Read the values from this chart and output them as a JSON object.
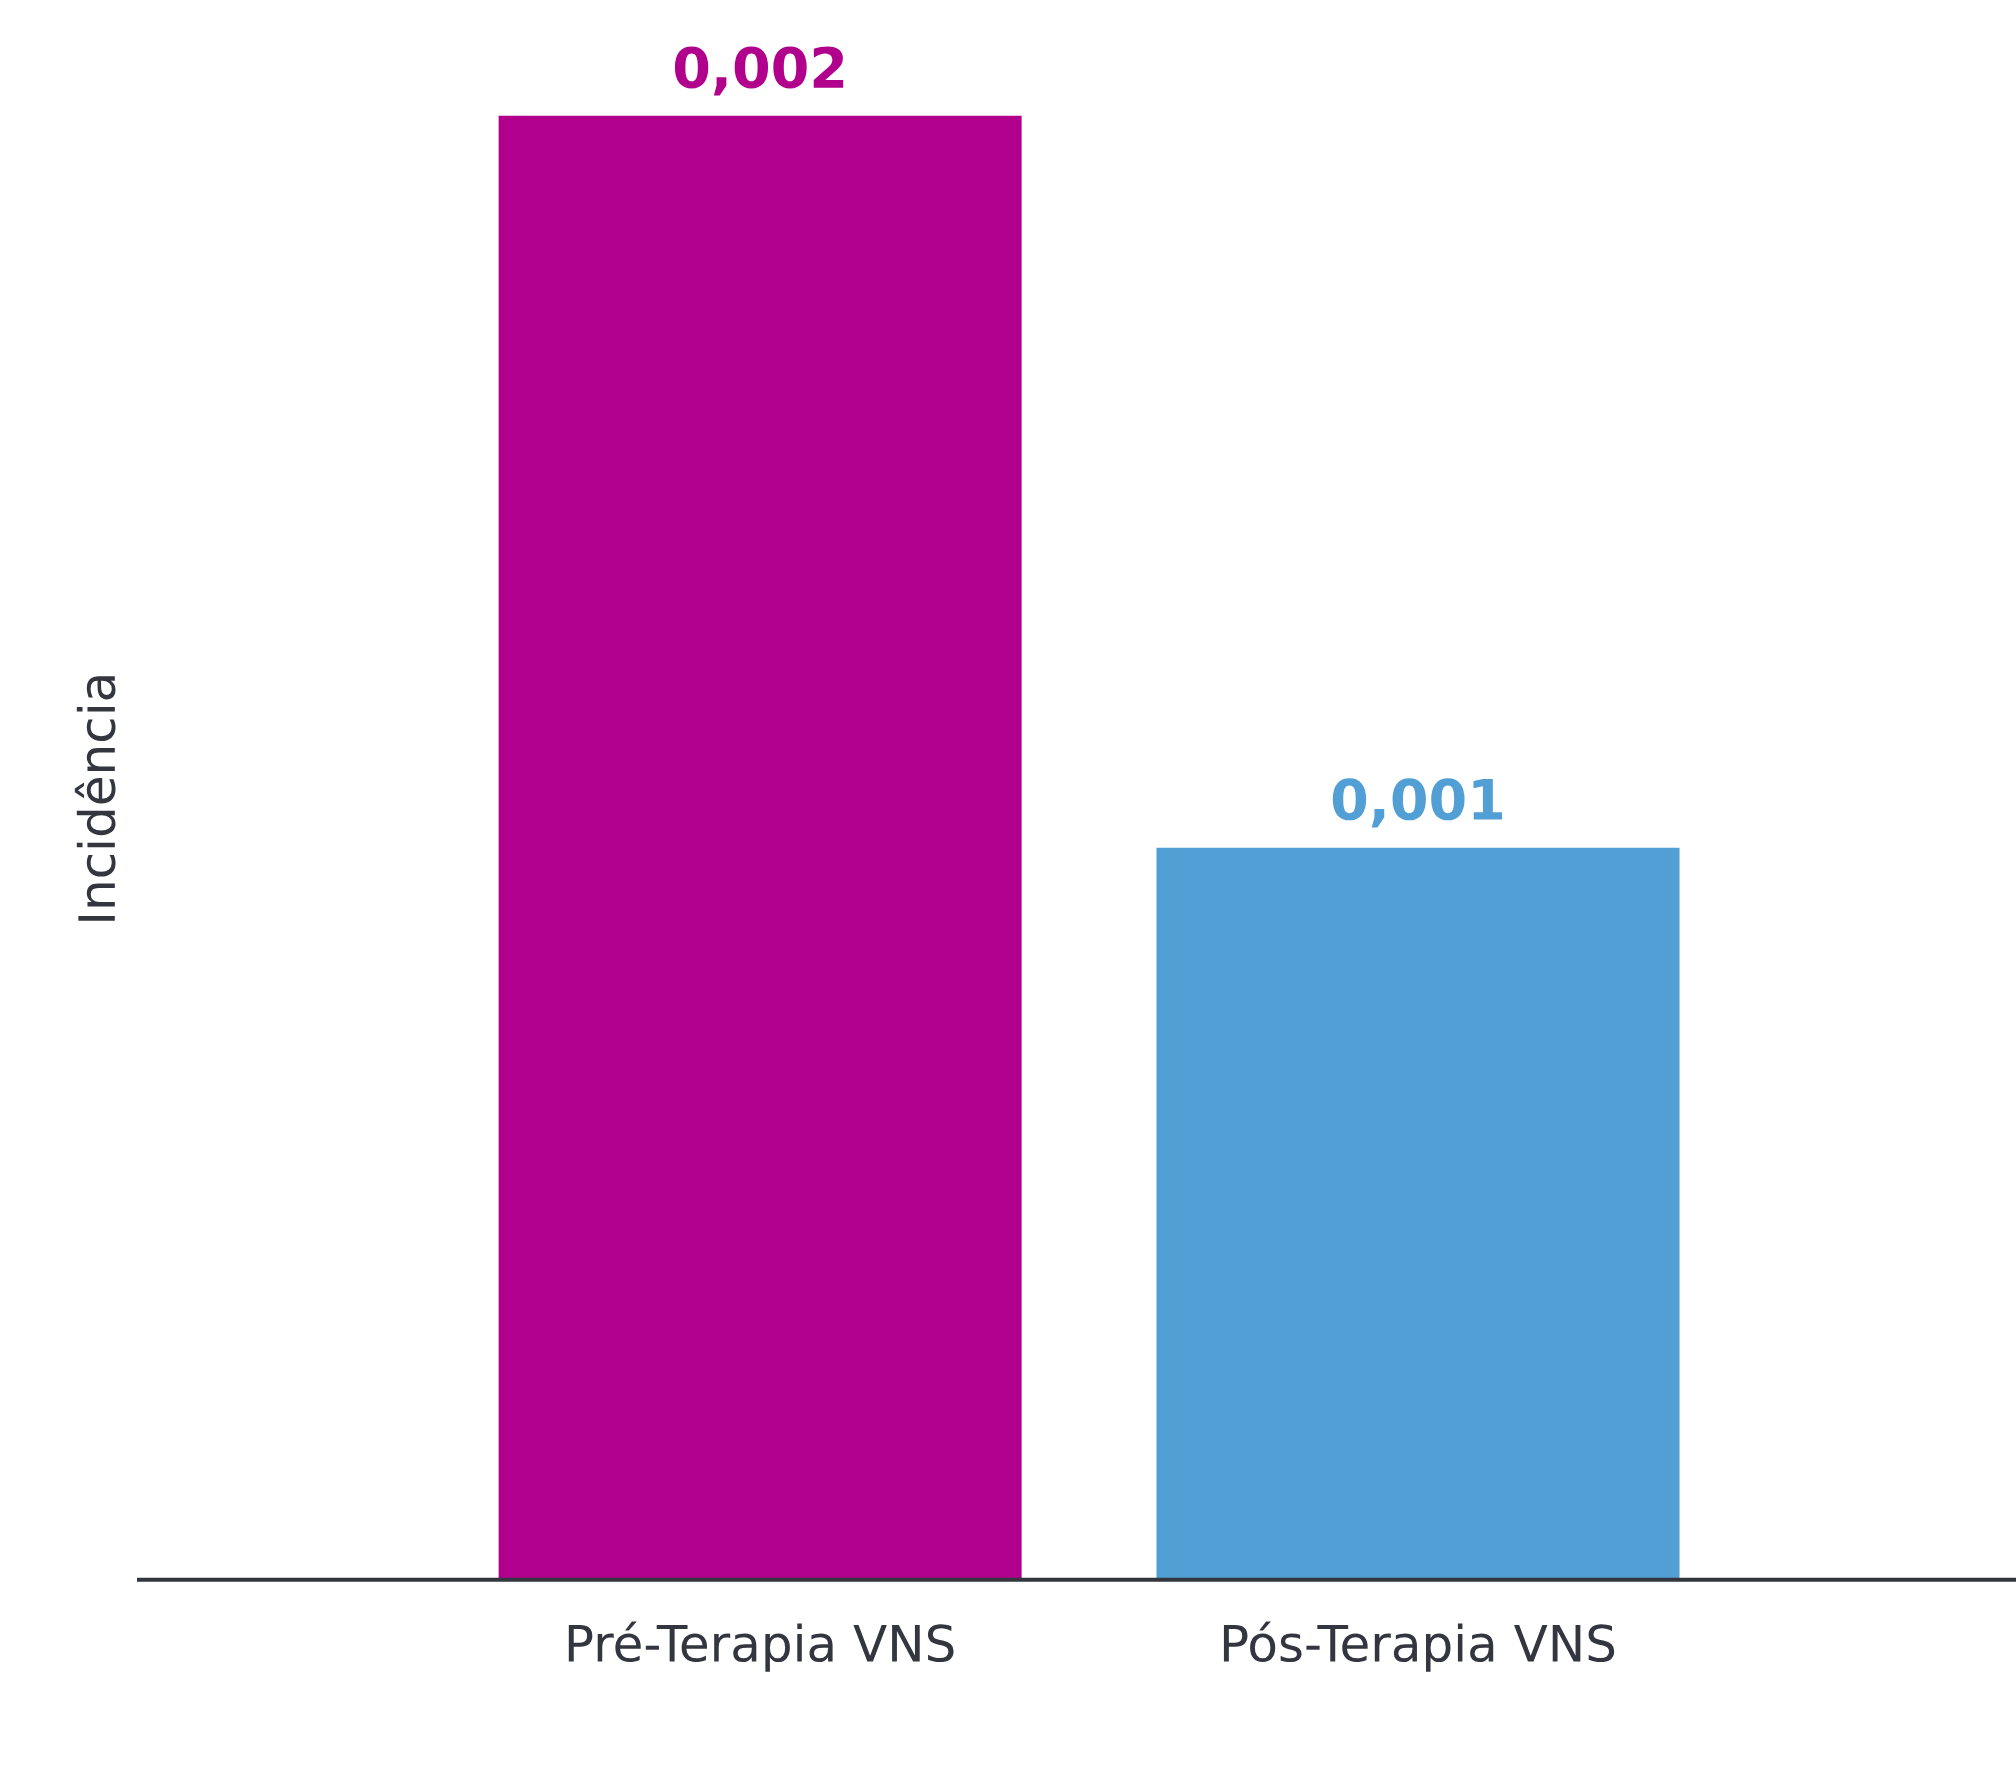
{
  "chart_data": {
    "type": "bar",
    "ylabel": "Incidência",
    "categories": [
      "Pré-Terapia VNS",
      "Pós-Terapia VNS"
    ],
    "values": [
      0.002,
      0.001
    ],
    "colors": [
      "#b0008c",
      "#529fd6"
    ],
    "value_labels": [
      "0,002",
      "0,001"
    ],
    "tick_labels": "x",
    "grid": false,
    "legend": false
  }
}
